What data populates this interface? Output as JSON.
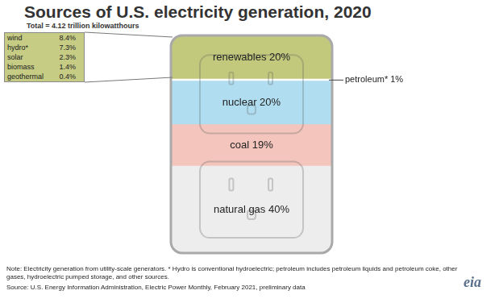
{
  "chart_data": [
    {
      "type": "bar",
      "title": "Sources of U.S. electricity generation, 2020",
      "subtitle": "Total = 4.12 trillion kilowatthours",
      "categories": [
        null
      ],
      "series": [
        {
          "values": [
            40
          ],
          "value_labels": [
            "natural gas 40%"
          ],
          "color": "#ededed"
        },
        {
          "values": [
            19
          ],
          "value_labels": [
            "coal 19%"
          ],
          "color": "#f3c5bd"
        },
        {
          "values": [
            20
          ],
          "value_labels": [
            "nuclear 20%"
          ],
          "color": "#b0def0"
        },
        {
          "values": [
            1
          ],
          "value_labels": [
            "petroleum* 1%"
          ],
          "color": "#ffffff"
        },
        {
          "values": [
            20
          ],
          "value_labels": [
            "renewables 20%"
          ],
          "color": "#c2c97d"
        }
      ],
      "stacked": true,
      "ylim": [
        0,
        100
      ],
      "tick_labels": false,
      "grid": false,
      "data_labels": true,
      "note": "Note: Electricity generation from utility-scale generators. * Hydro is conventional hydroelectric; petroleum includes petroleum liquids and petroleum coke, other gases, hydroelectric pumped storage, and other sources.",
      "source": "Source: U.S. Energy Information Administration, Electric Power Monthly, February 2021, preliminary data",
      "logo": "eia"
    },
    {
      "type": "table",
      "rows": [
        [
          "wind",
          "8.4%"
        ],
        [
          "hydro*",
          "7.3%"
        ],
        [
          "solar",
          "2.3%"
        ],
        [
          "biomass",
          "1.4%"
        ],
        [
          "geothermal",
          "0.4%"
        ]
      ]
    }
  ]
}
